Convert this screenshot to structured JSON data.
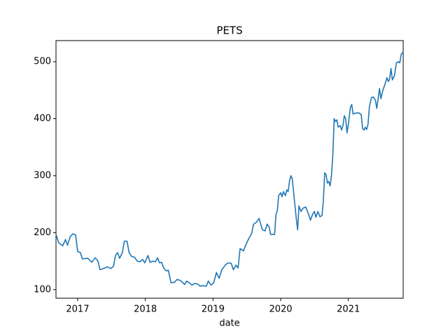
{
  "chart_data": {
    "type": "line",
    "title": "PETS",
    "xlabel": "date",
    "x": [
      2016.68,
      2016.72,
      2016.78,
      2016.82,
      2016.85,
      2016.89,
      2016.93,
      2016.97,
      2017.0,
      2017.04,
      2017.07,
      2017.15,
      2017.21,
      2017.26,
      2017.3,
      2017.33,
      2017.38,
      2017.44,
      2017.49,
      2017.53,
      2017.56,
      2017.59,
      2017.62,
      2017.66,
      2017.69,
      2017.73,
      2017.76,
      2017.8,
      2017.84,
      2017.88,
      2017.92,
      2017.96,
      2017.99,
      2018.04,
      2018.07,
      2018.11,
      2018.15,
      2018.18,
      2018.21,
      2018.24,
      2018.27,
      2018.31,
      2018.34,
      2018.38,
      2018.43,
      2018.47,
      2018.52,
      2018.58,
      2018.61,
      2018.65,
      2018.69,
      2018.73,
      2018.77,
      2018.81,
      2018.85,
      2018.9,
      2018.93,
      2018.97,
      2019.01,
      2019.05,
      2019.09,
      2019.13,
      2019.18,
      2019.22,
      2019.27,
      2019.3,
      2019.34,
      2019.37,
      2019.4,
      2019.45,
      2019.49,
      2019.53,
      2019.57,
      2019.6,
      2019.64,
      2019.68,
      2019.73,
      2019.77,
      2019.8,
      2019.83,
      2019.85,
      2019.91,
      2019.93,
      2019.95,
      2019.97,
      2020.0,
      2020.02,
      2020.04,
      2020.07,
      2020.09,
      2020.11,
      2020.13,
      2020.15,
      2020.17,
      2020.2,
      2020.23,
      2020.25,
      2020.27,
      2020.3,
      2020.33,
      2020.37,
      2020.41,
      2020.44,
      2020.47,
      2020.5,
      2020.52,
      2020.55,
      2020.58,
      2020.61,
      2020.63,
      2020.65,
      2020.67,
      2020.69,
      2020.71,
      2020.73,
      2020.75,
      2020.77,
      2020.79,
      2020.81,
      2020.83,
      2020.85,
      2020.88,
      2020.9,
      2020.92,
      2020.94,
      2020.96,
      2020.98,
      2021.0,
      2021.03,
      2021.05,
      2021.07,
      2021.11,
      2021.16,
      2021.19,
      2021.21,
      2021.23,
      2021.25,
      2021.27,
      2021.29,
      2021.31,
      2021.34,
      2021.37,
      2021.4,
      2021.42,
      2021.46,
      2021.48,
      2021.51,
      2021.54,
      2021.57,
      2021.59,
      2021.61,
      2021.63,
      2021.65,
      2021.68,
      2021.71,
      2021.74,
      2021.76,
      2021.78,
      2021.81
    ],
    "series": [
      {
        "color": "#1f77b4",
        "values": [
          197,
          182,
          177,
          188,
          178,
          193,
          198,
          196,
          167,
          165,
          154,
          155,
          148,
          156,
          150,
          135,
          137,
          140,
          137,
          141,
          160,
          165,
          155,
          165,
          185,
          185,
          165,
          158,
          157,
          150,
          149,
          153,
          147,
          160,
          148,
          150,
          149,
          156,
          147,
          148,
          138,
          133,
          134,
          112,
          113,
          118,
          116,
          109,
          115,
          112,
          108,
          111,
          110,
          106,
          107,
          106,
          115,
          108,
          112,
          130,
          120,
          135,
          143,
          147,
          146,
          135,
          143,
          138,
          172,
          168,
          180,
          190,
          198,
          215,
          218,
          225,
          205,
          203,
          215,
          210,
          197,
          197,
          232,
          238,
          265,
          270,
          263,
          272,
          265,
          275,
          272,
          290,
          300,
          295,
          260,
          225,
          205,
          247,
          237,
          243,
          245,
          233,
          222,
          232,
          237,
          227,
          237,
          228,
          230,
          255,
          305,
          302,
          287,
          290,
          282,
          300,
          335,
          400,
          395,
          398,
          385,
          388,
          380,
          388,
          405,
          400,
          375,
          390,
          420,
          425,
          408,
          410,
          410,
          407,
          383,
          380,
          385,
          381,
          390,
          420,
          437,
          438,
          432,
          418,
          453,
          435,
          450,
          460,
          472,
          465,
          470,
          488,
          468,
          475,
          498,
          500,
          498,
          513,
          517
        ]
      }
    ],
    "xlim": [
      2016.68,
      2021.81
    ],
    "xticks": [
      2017,
      2018,
      2019,
      2020,
      2021
    ],
    "ylim": [
      85,
      537
    ],
    "yticks": [
      100,
      200,
      300,
      400,
      500
    ]
  }
}
